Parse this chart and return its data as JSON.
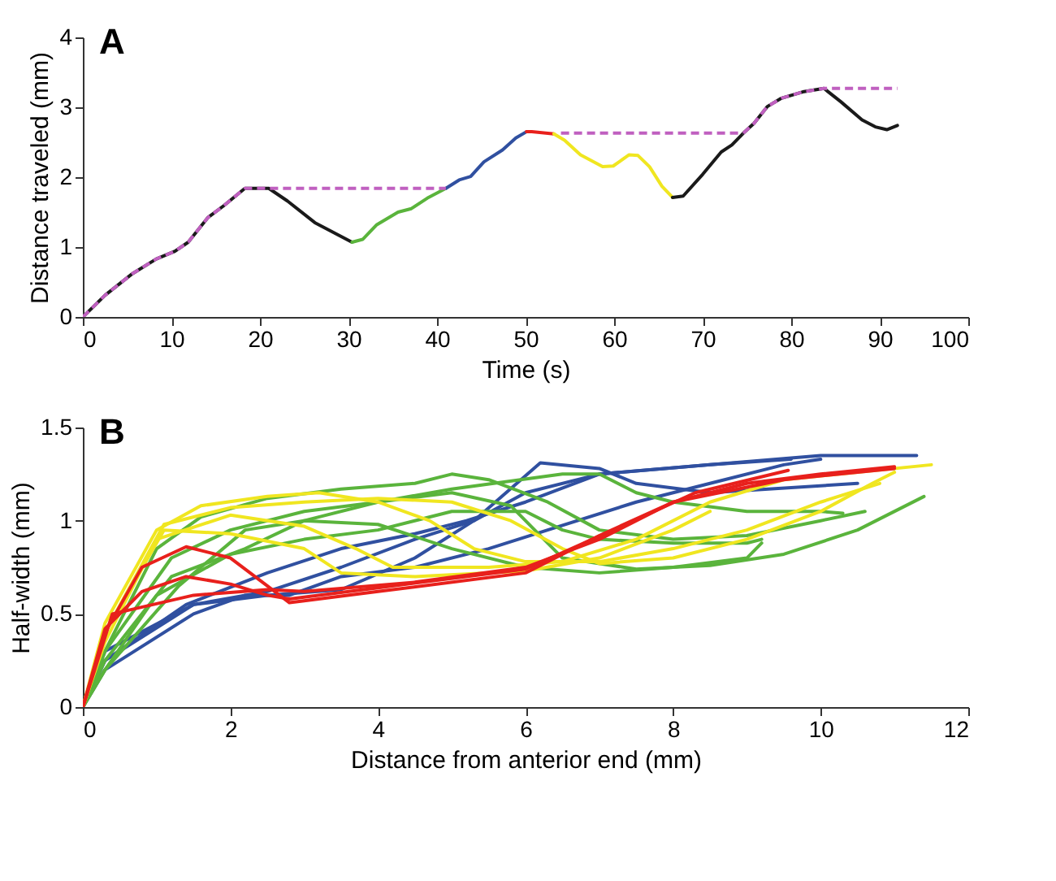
{
  "chart_data": [
    {
      "type": "line",
      "title": "A",
      "xlabel": "Time (s)",
      "ylabel": "Distance traveled (mm)",
      "xlim": [
        0,
        100
      ],
      "ylim": [
        0,
        4
      ],
      "xticks": [
        0,
        10,
        20,
        30,
        40,
        50,
        60,
        70,
        80,
        90,
        100
      ],
      "yticks": [
        0,
        1,
        2,
        3,
        4
      ],
      "series": [
        {
          "color": "#1a1a1a",
          "x": [
            0,
            2.5,
            5.6,
            8.3,
            10.4,
            11.9,
            14.1,
            15.9,
            18.3,
            21,
            23.1,
            26.2,
            30.4
          ],
          "values": [
            0,
            0.31,
            0.62,
            0.83,
            0.94,
            1.07,
            1.42,
            1.59,
            1.84,
            1.84,
            1.66,
            1.35,
            1.07
          ]
        },
        {
          "color": "#5ab43c",
          "x": [
            30.4,
            31.6,
            33.2,
            35.6,
            37.1,
            38.9,
            41
          ],
          "values": [
            1.07,
            1.11,
            1.32,
            1.5,
            1.55,
            1.7,
            1.84
          ]
        },
        {
          "color": "#3050a0",
          "x": [
            41,
            42.5,
            43.8,
            45.3,
            47.4,
            48.9,
            50.1
          ],
          "values": [
            1.84,
            1.96,
            2.01,
            2.22,
            2.39,
            2.56,
            2.65
          ]
        },
        {
          "color": "#e8201c",
          "x": [
            50.1,
            50.7,
            53.2
          ],
          "values": [
            2.65,
            2.65,
            2.62
          ]
        },
        {
          "color": "#f0e620",
          "x": [
            53.2,
            54.4,
            56.2,
            58.7,
            59.9,
            61.7,
            62.7,
            64,
            65.4,
            66.6
          ],
          "values": [
            2.62,
            2.53,
            2.32,
            2.15,
            2.16,
            2.32,
            2.31,
            2.15,
            1.87,
            1.71
          ]
        },
        {
          "color": "#1a1a1a",
          "x": [
            66.6,
            67.8,
            70,
            72.1,
            73.3,
            74.6,
            75.8,
            77.3,
            78.9,
            81.3,
            83.7,
            85.6,
            88,
            89.5,
            90.8,
            92
          ],
          "values": [
            1.71,
            1.73,
            2.04,
            2.36,
            2.46,
            2.63,
            2.77,
            3.01,
            3.13,
            3.22,
            3.27,
            3.08,
            2.82,
            2.72,
            2.68,
            2.74
          ]
        },
        {
          "color": "#c060c0",
          "line_style": "dashed",
          "x": [
            0,
            2.5,
            5.6,
            8.3,
            10.4,
            11.9,
            14.1,
            15.9,
            18.3,
            21,
            41
          ],
          "values": [
            0,
            0.31,
            0.62,
            0.83,
            0.94,
            1.07,
            1.42,
            1.59,
            1.84,
            1.84,
            1.84
          ]
        },
        {
          "color": "#c060c0",
          "line_style": "dashed",
          "x": [
            54,
            74.6
          ],
          "values": [
            2.63,
            2.63
          ]
        },
        {
          "color": "#c060c0",
          "line_style": "dashed",
          "x": [
            74.6,
            75.8,
            77.3,
            78.9,
            81.3,
            83.7,
            92
          ],
          "values": [
            2.63,
            2.77,
            3.01,
            3.13,
            3.22,
            3.27,
            3.27
          ]
        }
      ]
    },
    {
      "type": "line",
      "title": "B",
      "xlabel": "Distance from anterior end (mm)",
      "ylabel": "Half-width (mm)",
      "xlim": [
        0,
        12
      ],
      "ylim": [
        0,
        1.5
      ],
      "xticks": [
        0,
        2,
        4,
        6,
        8,
        10,
        12
      ],
      "yticks": [
        0,
        0.5,
        1,
        1.5
      ],
      "series": [
        {
          "color": "#3050a0",
          "x": [
            0,
            0.3,
            1.5,
            2.5,
            3.5,
            4.5,
            5.3,
            6,
            7,
            8.5,
            10,
            11.3
          ],
          "values": [
            0,
            0.25,
            0.55,
            0.62,
            0.75,
            0.9,
            1.0,
            1.15,
            1.25,
            1.3,
            1.35,
            1.35
          ]
        },
        {
          "color": "#3050a0",
          "x": [
            0,
            0.3,
            1.5,
            2.5,
            3.5,
            4.5,
            5.3,
            6.2,
            7,
            7.5,
            8.5,
            10.5
          ],
          "values": [
            0,
            0.3,
            0.55,
            0.6,
            0.63,
            0.8,
            1.0,
            1.31,
            1.28,
            1.2,
            1.15,
            1.2
          ]
        },
        {
          "color": "#3050a0",
          "x": [
            0,
            0.3,
            1.5,
            2.2,
            2.8,
            3.5,
            4.5,
            5.5,
            6.3,
            7.5,
            8.5,
            9.5,
            10
          ],
          "values": [
            0,
            0.2,
            0.5,
            0.6,
            0.6,
            0.7,
            0.75,
            0.85,
            0.95,
            1.1,
            1.2,
            1.3,
            1.33
          ]
        },
        {
          "color": "#3050a0",
          "x": [
            0,
            0.3,
            1.4,
            2.5,
            3.5,
            4.5,
            5.2,
            6,
            7,
            8.5,
            9.6
          ],
          "values": [
            0,
            0.25,
            0.55,
            0.72,
            0.85,
            0.93,
            1.0,
            1.1,
            1.25,
            1.3,
            1.33
          ]
        },
        {
          "color": "#5ab43c",
          "x": [
            0,
            0.3,
            1,
            1.6,
            2.5,
            3.5,
            4.5,
            5,
            5.5,
            6.3,
            7,
            8,
            9,
            10,
            10.6
          ],
          "values": [
            0,
            0.3,
            0.85,
            1.02,
            1.12,
            1.17,
            1.2,
            1.25,
            1.22,
            1.1,
            0.95,
            0.9,
            0.92,
            1.0,
            1.05
          ]
        },
        {
          "color": "#5ab43c",
          "x": [
            0,
            0.3,
            1.2,
            2,
            3,
            4,
            5,
            6.5,
            7,
            7.5,
            8,
            9,
            10,
            10.3
          ],
          "values": [
            0,
            0.3,
            0.8,
            0.95,
            1.05,
            1.1,
            1.17,
            1.25,
            1.25,
            1.15,
            1.1,
            1.05,
            1.05,
            1.04
          ]
        },
        {
          "color": "#5ab43c",
          "x": [
            0,
            0.3,
            1,
            2,
            3,
            4,
            5,
            6,
            6.5,
            7,
            8,
            9,
            9.2
          ],
          "values": [
            0,
            0.2,
            0.6,
            0.82,
            0.9,
            0.95,
            1.05,
            1.05,
            0.95,
            0.9,
            0.88,
            0.88,
            0.9
          ]
        },
        {
          "color": "#5ab43c",
          "x": [
            0,
            0.3,
            1.2,
            2.2,
            3,
            4,
            5,
            5.8,
            6.5,
            7.5,
            8.5,
            9.5,
            10.5,
            11.4
          ],
          "values": [
            0,
            0.25,
            0.7,
            0.85,
            1.0,
            1.1,
            1.15,
            1.08,
            0.8,
            0.74,
            0.76,
            0.82,
            0.95,
            1.13
          ]
        },
        {
          "color": "#5ab43c",
          "x": [
            0,
            0.3,
            1.3,
            2.2,
            3,
            4,
            5,
            6,
            7,
            8,
            9,
            9.2
          ],
          "values": [
            0,
            0.2,
            0.65,
            0.95,
            1.0,
            0.98,
            0.85,
            0.75,
            0.72,
            0.75,
            0.8,
            0.88
          ]
        },
        {
          "color": "#f0e620",
          "x": [
            0,
            0.3,
            1,
            1.6,
            2.5,
            3.2,
            4,
            4.7,
            5.3,
            6,
            7,
            8,
            9,
            10,
            10.8
          ],
          "values": [
            0,
            0.45,
            0.95,
            1.08,
            1.13,
            1.15,
            1.1,
            1.0,
            0.85,
            0.78,
            0.78,
            0.85,
            0.95,
            1.1,
            1.2
          ]
        },
        {
          "color": "#f0e620",
          "x": [
            0,
            0.3,
            1.1,
            2,
            3,
            4,
            5,
            5.8,
            6.5,
            7,
            8,
            9,
            10,
            10.7,
            11
          ],
          "values": [
            0,
            0.4,
            0.98,
            1.07,
            1.1,
            1.12,
            1.1,
            1.0,
            0.85,
            0.77,
            0.8,
            0.9,
            1.05,
            1.2,
            1.26
          ]
        },
        {
          "color": "#f0e620",
          "x": [
            0,
            0.3,
            1.1,
            2,
            3,
            3.5,
            4.5,
            6,
            7,
            8,
            8.5
          ],
          "values": [
            0,
            0.4,
            0.95,
            0.93,
            0.85,
            0.72,
            0.7,
            0.73,
            0.8,
            0.95,
            1.05
          ]
        },
        {
          "color": "#f0e620",
          "x": [
            0,
            0.3,
            1,
            2,
            3,
            3.7,
            4.2,
            5.5,
            6.5,
            7.5,
            8.5,
            9.5,
            11.5
          ],
          "values": [
            0,
            0.35,
            0.9,
            1.03,
            0.97,
            0.85,
            0.75,
            0.75,
            0.78,
            0.9,
            1.1,
            1.22,
            1.3
          ]
        },
        {
          "color": "#e8201c",
          "x": [
            0,
            0.3,
            0.8,
            1.4,
            2,
            2.5,
            2.8,
            3,
            4,
            6,
            7,
            8,
            9,
            10,
            11
          ],
          "values": [
            0,
            0.4,
            0.75,
            0.86,
            0.8,
            0.65,
            0.56,
            0.57,
            0.62,
            0.72,
            0.92,
            1.1,
            1.2,
            1.25,
            1.29
          ]
        },
        {
          "color": "#e8201c",
          "x": [
            0,
            0.3,
            0.8,
            1.4,
            2,
            2.5,
            2.8,
            4,
            6,
            7.3,
            8.3,
            9.56
          ],
          "values": [
            0,
            0.42,
            0.62,
            0.7,
            0.66,
            0.6,
            0.58,
            0.64,
            0.74,
            0.97,
            1.15,
            1.27
          ]
        },
        {
          "color": "#e8201c",
          "x": [
            0,
            0.4,
            1.5,
            2.5,
            3,
            4.5,
            6,
            7,
            8,
            9.5,
            11
          ],
          "values": [
            0,
            0.5,
            0.6,
            0.63,
            0.62,
            0.67,
            0.75,
            0.9,
            1.1,
            1.22,
            1.28
          ]
        }
      ]
    }
  ]
}
